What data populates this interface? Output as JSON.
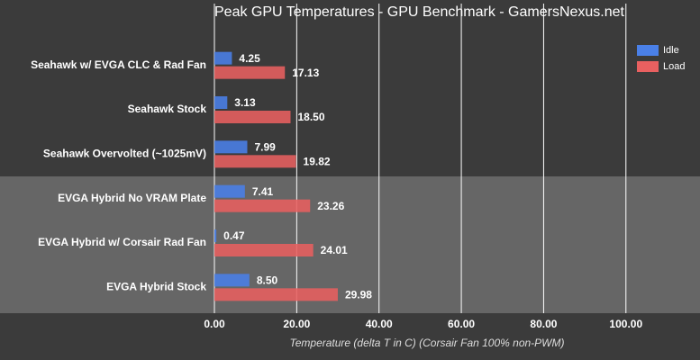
{
  "chart_data": {
    "type": "hbar",
    "title": "Peak GPU Temperatures - GPU Benchmark - GamersNexus.net",
    "x_label": "Temperature (delta T in C) (Corsair Fan 100% non-PWM)",
    "categories": [
      "Seahawk w/ EVGA CLC & Rad Fan",
      "Seahawk Stock",
      "Seahawk Overvolted (~1025mV)",
      "EVGA Hybrid No VRAM Plate",
      "EVGA Hybrid w/ Corsair Rad Fan",
      "EVGA Hybrid Stock"
    ],
    "series": [
      {
        "name": "Idle",
        "color": "#4a80e8",
        "values": [
          4.25,
          3.13,
          7.99,
          7.41,
          0.47,
          8.5
        ],
        "value_labels": [
          "4.25",
          "3.13",
          "7.99",
          "7.41",
          "0.47",
          "8.50"
        ]
      },
      {
        "name": "Load",
        "color": "#e86060",
        "values": [
          17.13,
          18.5,
          19.82,
          23.26,
          24.01,
          29.98
        ],
        "value_labels": [
          "17.13",
          "18.50",
          "19.82",
          "23.26",
          "24.01",
          "29.98"
        ]
      }
    ],
    "xlim": [
      0,
      118
    ],
    "xticks": [
      {
        "value": 0,
        "label": "0.00"
      },
      {
        "value": 20,
        "label": "20.00"
      },
      {
        "value": 40,
        "label": "40.00"
      },
      {
        "value": 60,
        "label": "60.00"
      },
      {
        "value": 80,
        "label": "80.00"
      },
      {
        "value": 100,
        "label": "100.00"
      }
    ],
    "grid": true,
    "legend": "top-right"
  }
}
